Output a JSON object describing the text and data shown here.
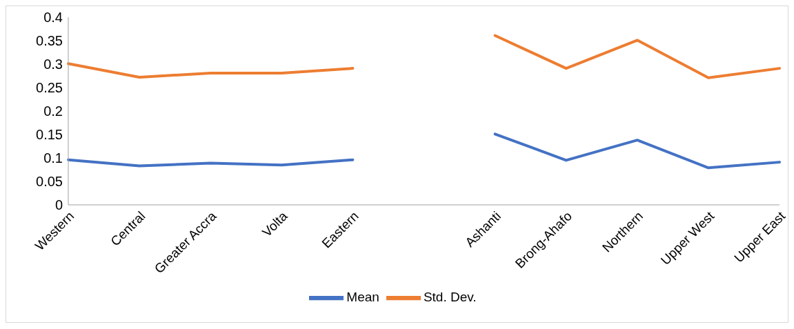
{
  "chart_data": {
    "type": "line",
    "categories": [
      "Western",
      "Central",
      "Greater Accra",
      "Volta",
      "Eastern",
      null,
      "Ashanti",
      "Brong-Ahafo",
      "Northern",
      "Upper West",
      "Upper East"
    ],
    "series": [
      {
        "name": "Mean",
        "color": "#4472c4",
        "values": [
          0.096,
          0.083,
          0.089,
          0.085,
          0.096,
          null,
          0.151,
          0.095,
          0.138,
          0.079,
          0.091
        ]
      },
      {
        "name": "Std. Dev.",
        "color": "#ed7d31",
        "values": [
          0.301,
          0.272,
          0.281,
          0.281,
          0.291,
          null,
          0.361,
          0.291,
          0.351,
          0.271,
          0.291
        ]
      }
    ],
    "ylim": [
      0,
      0.4
    ],
    "yticks": [
      0,
      0.05,
      0.1,
      0.15,
      0.2,
      0.25,
      0.3,
      0.35,
      0.4
    ],
    "grid": false,
    "legend": "bottom",
    "marker": "none",
    "line_style": "solid"
  }
}
